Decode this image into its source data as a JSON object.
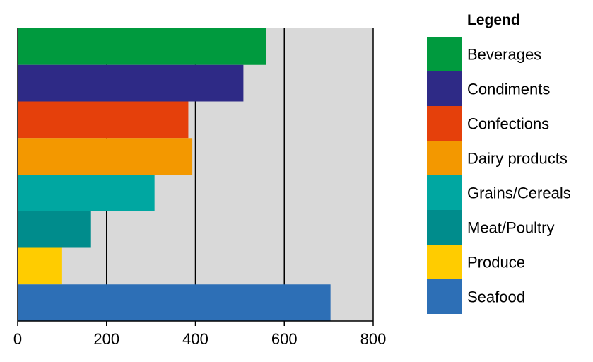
{
  "chart_data": {
    "type": "bar",
    "orientation": "horizontal",
    "categories": [
      "Beverages",
      "Condiments",
      "Confections",
      "Dairy products",
      "Grains/Cereals",
      "Meat/Poultry",
      "Produce",
      "Seafood"
    ],
    "values": [
      559,
      508,
      384,
      393,
      308,
      165,
      100,
      704
    ],
    "colors": [
      "#009a3e",
      "#2e2a86",
      "#e5400b",
      "#f39800",
      "#00a7a1",
      "#008c8c",
      "#ffcc00",
      "#2d6fb6"
    ],
    "xlim": [
      0,
      800
    ],
    "xticks": [
      0,
      200,
      400,
      600,
      800
    ],
    "xtick_labels": [
      "0",
      "200",
      "400",
      "600",
      "800"
    ],
    "grid": "vertical lines",
    "plot_background": "#d9d9d9",
    "legend_title": "Legend",
    "legend_position": "right"
  }
}
